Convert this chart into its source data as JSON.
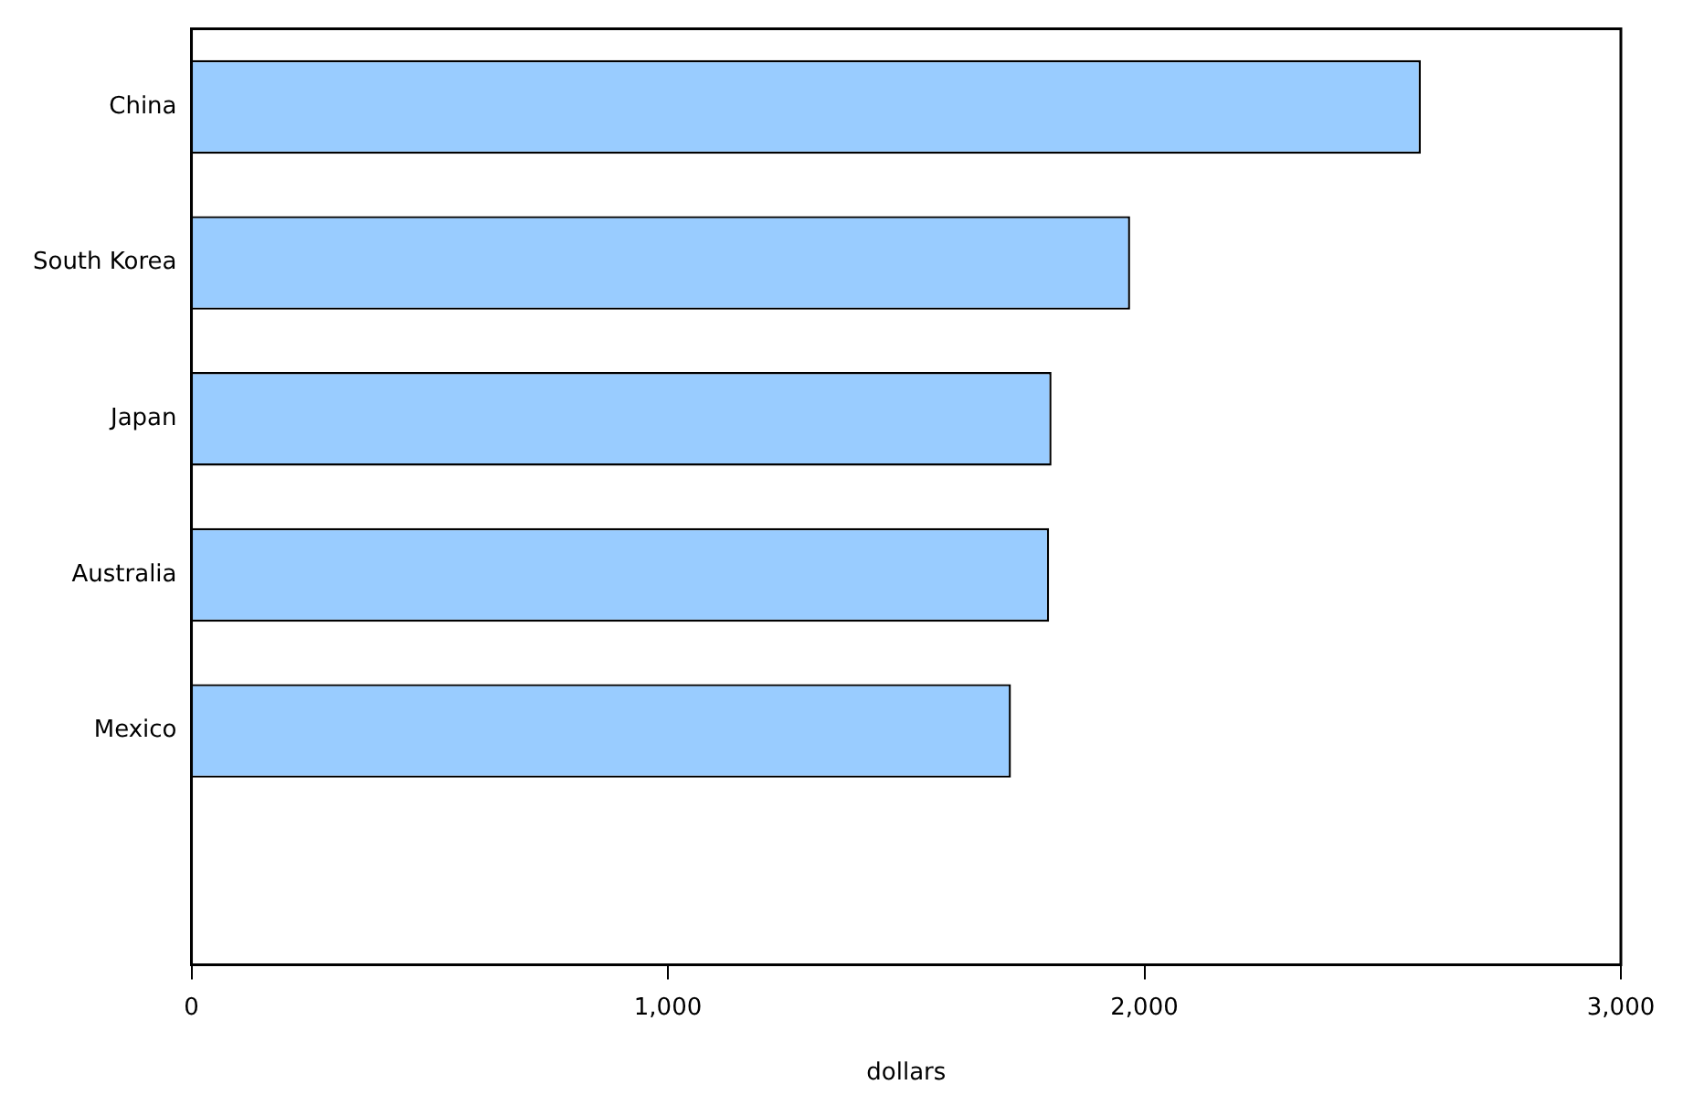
{
  "chart_data": {
    "type": "bar",
    "orientation": "horizontal",
    "xlabel": "dollars",
    "categories": [
      "China",
      "South Korea",
      "Japan",
      "Australia",
      "Mexico",
      null
    ],
    "values": [
      2580,
      1970,
      1805,
      1800,
      1720,
      null
    ],
    "color": "#99ccff",
    "xlim": [
      0,
      3000
    ],
    "xticks": [
      {
        "value": 0,
        "label": "0"
      },
      {
        "value": 1000,
        "label": "1,000"
      },
      {
        "value": 2000,
        "label": "2,000"
      },
      {
        "value": 3000,
        "label": "3,000"
      }
    ],
    "grid": false,
    "legend": false
  }
}
